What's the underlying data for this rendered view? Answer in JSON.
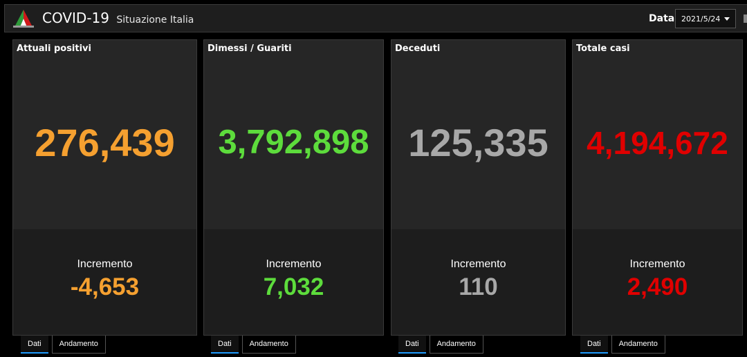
{
  "header": {
    "title": "COVID-19",
    "subtitle": "Situazione Italia",
    "date_label": "Data",
    "date_value": "2021/5/24"
  },
  "colors": {
    "orange": "#f5a030",
    "green": "#5ddc3c",
    "gray": "#a8a8a8",
    "red": "#e00000",
    "tab_accent": "#1f9cff"
  },
  "cards": [
    {
      "title": "Attuali positivi",
      "value": "276,439",
      "increment_label": "Incremento",
      "increment": "-4,653"
    },
    {
      "title": "Dimessi / Guariti",
      "value": "3,792,898",
      "increment_label": "Incremento",
      "increment": "7,032"
    },
    {
      "title": "Deceduti",
      "value": "125,335",
      "increment_label": "Incremento",
      "increment": "110"
    },
    {
      "title": "Totale casi",
      "value": "4,194,672",
      "increment_label": "Incremento",
      "increment": "2,490"
    }
  ],
  "tabs": {
    "dati": "Dati",
    "andamento": "Andamento"
  }
}
